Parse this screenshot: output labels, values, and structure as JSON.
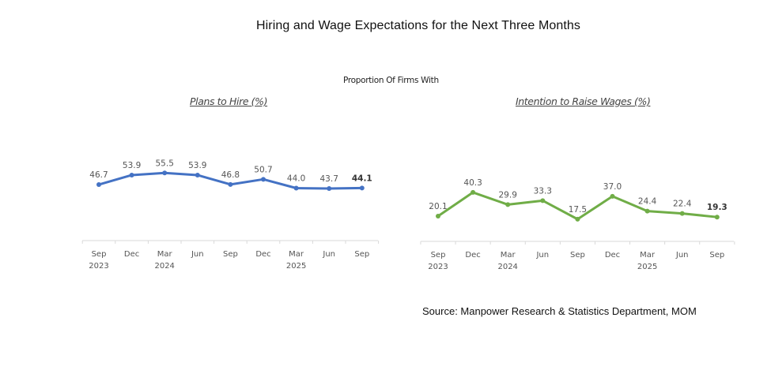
{
  "title": "Hiring and Wage Expectations for the Next Three Months",
  "subtitle": "Proportion Of Firms With",
  "source": "Source: Manpower Research & Statistics Department, MOM",
  "colors": {
    "hire": "#4472c4",
    "wages": "#70ad47",
    "axis": "#d9d9d9"
  },
  "chart_data": [
    {
      "type": "line",
      "title": "Plans to Hire (%)",
      "categories": [
        "Sep 2023",
        "Dec",
        "Mar 2024",
        "Jun",
        "Sep",
        "Dec",
        "Mar 2025",
        "Jun",
        "Sep"
      ],
      "tick_labels": [
        [
          "Sep",
          "2023"
        ],
        [
          "Dec",
          ""
        ],
        [
          "Mar",
          "2024"
        ],
        [
          "Jun",
          ""
        ],
        [
          "Sep",
          ""
        ],
        [
          "Dec",
          ""
        ],
        [
          "Mar",
          "2025"
        ],
        [
          "Jun",
          ""
        ],
        [
          "Sep",
          ""
        ]
      ],
      "values": [
        46.7,
        53.9,
        55.5,
        53.9,
        46.8,
        50.7,
        44.0,
        43.7,
        44.1
      ],
      "value_labels": [
        "46.7",
        "53.9",
        "55.5",
        "53.9",
        "46.8",
        "50.7",
        "44.0",
        "43.7",
        "44.1"
      ],
      "bold_last_label": true,
      "grid": false,
      "xlabel": "",
      "ylabel": ""
    },
    {
      "type": "line",
      "title": "Intention to Raise Wages (%)",
      "categories": [
        "Sep 2023",
        "Dec",
        "Mar 2024",
        "Jun",
        "Sep",
        "Dec",
        "Mar 2025",
        "Jun",
        "Sep"
      ],
      "tick_labels": [
        [
          "Sep",
          "2023"
        ],
        [
          "Dec",
          ""
        ],
        [
          "Mar",
          "2024"
        ],
        [
          "Jun",
          ""
        ],
        [
          "Sep",
          ""
        ],
        [
          "Dec",
          ""
        ],
        [
          "Mar",
          "2025"
        ],
        [
          "Jun",
          ""
        ],
        [
          "Sep",
          ""
        ]
      ],
      "values": [
        20.1,
        40.3,
        29.9,
        33.3,
        17.5,
        37.0,
        24.4,
        22.4,
        19.3
      ],
      "value_labels": [
        "20.1",
        "40.3",
        "29.9",
        "33.3",
        "17.5",
        "37.0",
        "24.4",
        "22.4",
        "19.3"
      ],
      "bold_last_label": true,
      "grid": false,
      "xlabel": "",
      "ylabel": ""
    }
  ]
}
